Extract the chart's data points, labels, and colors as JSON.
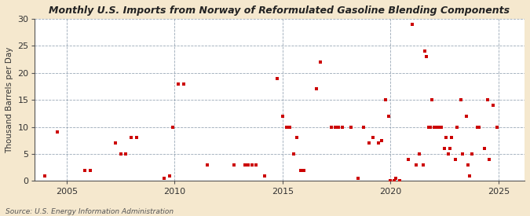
{
  "title": "Monthly U.S. Imports from Norway of Reformulated Gasoline Blending Components",
  "ylabel": "Thousand Barrels per Day",
  "source": "Source: U.S. Energy Information Administration",
  "background_color": "#f5e8ce",
  "plot_bg_color": "#ffffff",
  "dot_color": "#cc0000",
  "ylim": [
    0,
    30
  ],
  "yticks": [
    0,
    5,
    10,
    15,
    20,
    25,
    30
  ],
  "xlim_start": 2003.5,
  "xlim_end": 2026.2,
  "xticks": [
    2005,
    2010,
    2015,
    2020,
    2025
  ],
  "data_points": [
    [
      2004.0,
      1.0
    ],
    [
      2004.58,
      9.0
    ],
    [
      2005.83,
      2.0
    ],
    [
      2006.08,
      2.0
    ],
    [
      2007.25,
      7.0
    ],
    [
      2007.5,
      5.0
    ],
    [
      2007.75,
      5.0
    ],
    [
      2008.0,
      8.0
    ],
    [
      2008.25,
      8.0
    ],
    [
      2009.5,
      0.5
    ],
    [
      2009.75,
      1.0
    ],
    [
      2009.92,
      10.0
    ],
    [
      2010.17,
      18.0
    ],
    [
      2010.42,
      18.0
    ],
    [
      2011.5,
      3.0
    ],
    [
      2012.75,
      3.0
    ],
    [
      2013.25,
      3.0
    ],
    [
      2013.42,
      3.0
    ],
    [
      2013.58,
      3.0
    ],
    [
      2013.75,
      3.0
    ],
    [
      2014.17,
      1.0
    ],
    [
      2014.75,
      19.0
    ],
    [
      2015.0,
      12.0
    ],
    [
      2015.17,
      10.0
    ],
    [
      2015.33,
      10.0
    ],
    [
      2015.5,
      5.0
    ],
    [
      2015.67,
      8.0
    ],
    [
      2015.83,
      2.0
    ],
    [
      2016.0,
      2.0
    ],
    [
      2016.58,
      17.0
    ],
    [
      2016.75,
      22.0
    ],
    [
      2017.25,
      10.0
    ],
    [
      2017.42,
      10.0
    ],
    [
      2017.58,
      10.0
    ],
    [
      2017.75,
      10.0
    ],
    [
      2018.17,
      10.0
    ],
    [
      2018.5,
      0.5
    ],
    [
      2018.75,
      10.0
    ],
    [
      2019.0,
      7.0
    ],
    [
      2019.17,
      8.0
    ],
    [
      2019.42,
      7.0
    ],
    [
      2019.58,
      7.5
    ],
    [
      2019.75,
      15.0
    ],
    [
      2019.92,
      12.0
    ],
    [
      2020.0,
      0.0
    ],
    [
      2020.17,
      0.0
    ],
    [
      2020.25,
      0.5
    ],
    [
      2020.42,
      0.0
    ],
    [
      2020.83,
      4.0
    ],
    [
      2021.0,
      29.0
    ],
    [
      2021.17,
      3.0
    ],
    [
      2021.33,
      5.0
    ],
    [
      2021.5,
      3.0
    ],
    [
      2021.58,
      24.0
    ],
    [
      2021.67,
      23.0
    ],
    [
      2021.75,
      10.0
    ],
    [
      2021.83,
      10.0
    ],
    [
      2021.92,
      15.0
    ],
    [
      2022.0,
      10.0
    ],
    [
      2022.08,
      10.0
    ],
    [
      2022.25,
      10.0
    ],
    [
      2022.33,
      10.0
    ],
    [
      2022.5,
      6.0
    ],
    [
      2022.58,
      8.0
    ],
    [
      2022.67,
      5.0
    ],
    [
      2022.75,
      6.0
    ],
    [
      2022.83,
      8.0
    ],
    [
      2023.0,
      4.0
    ],
    [
      2023.08,
      10.0
    ],
    [
      2023.25,
      15.0
    ],
    [
      2023.33,
      5.0
    ],
    [
      2023.5,
      12.0
    ],
    [
      2023.58,
      3.0
    ],
    [
      2023.67,
      1.0
    ],
    [
      2023.75,
      5.0
    ],
    [
      2024.0,
      10.0
    ],
    [
      2024.08,
      10.0
    ],
    [
      2024.33,
      6.0
    ],
    [
      2024.5,
      15.0
    ],
    [
      2024.58,
      4.0
    ],
    [
      2024.75,
      14.0
    ],
    [
      2024.92,
      10.0
    ]
  ]
}
